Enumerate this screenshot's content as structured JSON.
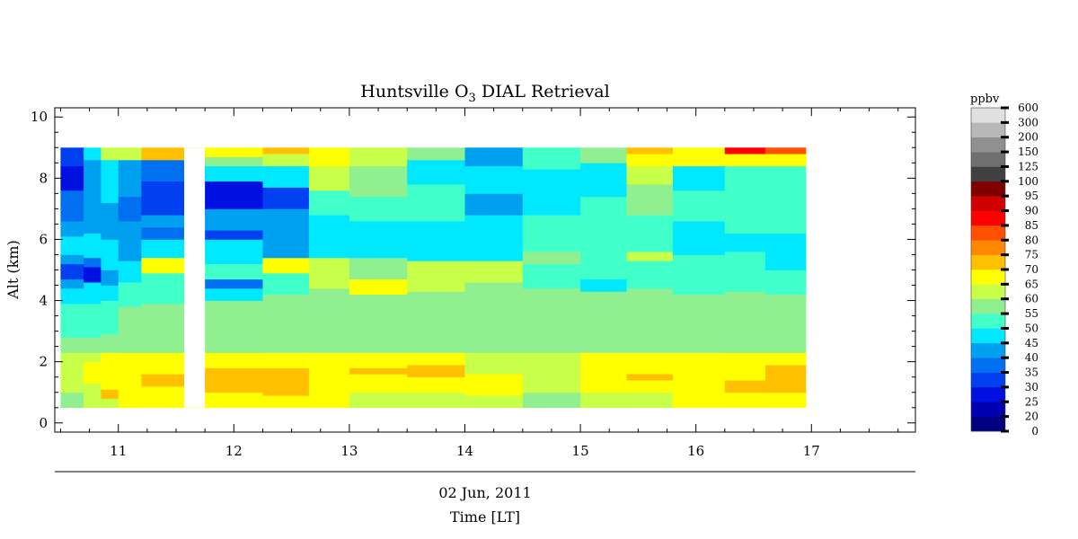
{
  "chart_data": {
    "type": "heatmap",
    "title_prefix": "Huntsville O",
    "title_subscript": "3",
    "title_suffix": " DIAL Retrieval",
    "ylabel": "Alt (km)",
    "date_label": "02 Jun, 2011",
    "xlabel": "Time [LT]",
    "x_unit": "local time (hours)",
    "xlim": [
      10.45,
      17.9
    ],
    "ylim": [
      -0.3,
      10.3
    ],
    "x_ticks": [
      11,
      12,
      13,
      14,
      15,
      16,
      17
    ],
    "y_ticks": [
      0,
      2,
      4,
      6,
      8,
      10
    ],
    "grid": false,
    "colorbar": {
      "title": "ppbv",
      "levels": [
        0,
        20,
        25,
        30,
        35,
        40,
        45,
        50,
        55,
        60,
        65,
        70,
        75,
        80,
        85,
        90,
        95,
        100,
        125,
        150,
        200,
        300,
        600
      ],
      "colors": [
        "#000080",
        "#0000b0",
        "#0010e0",
        "#0040f0",
        "#0070f0",
        "#00a0f0",
        "#00e8ff",
        "#40ffc8",
        "#90f090",
        "#c8ff48",
        "#ffff00",
        "#ffc000",
        "#ff8800",
        "#ff5000",
        "#ff0000",
        "#d00000",
        "#800000",
        "#404040",
        "#707070",
        "#909090",
        "#b8b8b8",
        "#e0e0e0"
      ]
    },
    "altitude_range_km": [
      0.5,
      9.0
    ],
    "gap_hours": [
      11.57,
      11.75
    ],
    "profiles": [
      {
        "time": 10.5,
        "bands": [
          [
            0.5,
            1.0,
            "#90f090"
          ],
          [
            1.0,
            2.3,
            "#c8ff48"
          ],
          [
            2.3,
            2.8,
            "#90f090"
          ],
          [
            2.8,
            3.9,
            "#40ffc8"
          ],
          [
            3.9,
            4.4,
            "#00e8ff"
          ],
          [
            4.4,
            4.7,
            "#00a0f0"
          ],
          [
            4.7,
            5.2,
            "#0040f0"
          ],
          [
            5.2,
            5.5,
            "#00a0f0"
          ],
          [
            5.5,
            6.1,
            "#00e8ff"
          ],
          [
            6.1,
            6.6,
            "#00a0f0"
          ],
          [
            6.6,
            7.6,
            "#0070f0"
          ],
          [
            7.6,
            8.4,
            "#0010e0"
          ],
          [
            8.4,
            9.0,
            "#0040f0"
          ]
        ]
      },
      {
        "time": 10.7,
        "bands": [
          [
            0.5,
            1.3,
            "#c8ff48"
          ],
          [
            1.3,
            2.0,
            "#ffff00"
          ],
          [
            2.0,
            2.3,
            "#c8ff48"
          ],
          [
            2.3,
            2.8,
            "#90f090"
          ],
          [
            2.8,
            3.9,
            "#40ffc8"
          ],
          [
            3.9,
            4.6,
            "#00e8ff"
          ],
          [
            4.6,
            5.1,
            "#0010e0"
          ],
          [
            5.1,
            5.4,
            "#0070f0"
          ],
          [
            5.4,
            6.2,
            "#00e8ff"
          ],
          [
            6.2,
            6.8,
            "#00a0f0"
          ],
          [
            6.8,
            8.6,
            "#00a0f0"
          ],
          [
            8.6,
            9.0,
            "#00e8ff"
          ]
        ]
      },
      {
        "time": 10.85,
        "bands": [
          [
            0.5,
            0.8,
            "#c8ff48"
          ],
          [
            0.8,
            1.1,
            "#ffc000"
          ],
          [
            1.1,
            2.3,
            "#ffff00"
          ],
          [
            2.3,
            2.9,
            "#90f090"
          ],
          [
            2.9,
            4.0,
            "#40ffc8"
          ],
          [
            4.0,
            4.5,
            "#00e8ff"
          ],
          [
            4.5,
            5.0,
            "#00a0f0"
          ],
          [
            5.0,
            6.0,
            "#00e8ff"
          ],
          [
            6.0,
            7.2,
            "#00a0f0"
          ],
          [
            7.2,
            8.6,
            "#00e8ff"
          ],
          [
            8.6,
            9.0,
            "#c8ff48"
          ]
        ]
      },
      {
        "time": 11.0,
        "bands": [
          [
            0.5,
            2.3,
            "#ffff00"
          ],
          [
            2.3,
            3.8,
            "#90f090"
          ],
          [
            3.8,
            4.6,
            "#40ffc8"
          ],
          [
            4.6,
            5.3,
            "#00e8ff"
          ],
          [
            5.3,
            6.6,
            "#00a0f0"
          ],
          [
            6.6,
            7.4,
            "#0070f0"
          ],
          [
            7.4,
            8.6,
            "#00a0f0"
          ],
          [
            8.6,
            9.0,
            "#c8ff48"
          ]
        ]
      },
      {
        "time": 11.2,
        "bands": [
          [
            0.5,
            1.2,
            "#ffff00"
          ],
          [
            1.2,
            1.6,
            "#ffc000"
          ],
          [
            1.6,
            2.3,
            "#ffff00"
          ],
          [
            2.3,
            3.9,
            "#90f090"
          ],
          [
            3.9,
            4.9,
            "#40ffc8"
          ],
          [
            4.9,
            5.4,
            "#ffff00"
          ],
          [
            5.4,
            6.0,
            "#00e8ff"
          ],
          [
            6.0,
            6.4,
            "#0070f0"
          ],
          [
            6.4,
            6.8,
            "#00a0f0"
          ],
          [
            6.8,
            7.9,
            "#0040f0"
          ],
          [
            7.9,
            8.6,
            "#0070f0"
          ],
          [
            8.6,
            9.0,
            "#ffc000"
          ]
        ]
      },
      {
        "time": 11.75,
        "bands": [
          [
            0.5,
            1.0,
            "#ffff00"
          ],
          [
            1.0,
            1.8,
            "#ffc000"
          ],
          [
            1.8,
            2.3,
            "#ffff00"
          ],
          [
            2.3,
            4.0,
            "#90f090"
          ],
          [
            4.0,
            4.4,
            "#00e8ff"
          ],
          [
            4.4,
            4.7,
            "#0070f0"
          ],
          [
            4.7,
            5.2,
            "#40ffc8"
          ],
          [
            5.2,
            6.0,
            "#00e8ff"
          ],
          [
            6.0,
            6.3,
            "#0040f0"
          ],
          [
            6.3,
            7.0,
            "#00a0f0"
          ],
          [
            7.0,
            7.9,
            "#0010e0"
          ],
          [
            7.9,
            8.4,
            "#00e8ff"
          ],
          [
            8.4,
            8.7,
            "#90f090"
          ],
          [
            8.7,
            9.0,
            "#ffff00"
          ]
        ]
      },
      {
        "time": 12.25,
        "bands": [
          [
            0.5,
            0.9,
            "#ffff00"
          ],
          [
            0.9,
            1.8,
            "#ffc000"
          ],
          [
            1.8,
            2.3,
            "#ffff00"
          ],
          [
            2.3,
            4.2,
            "#90f090"
          ],
          [
            4.2,
            4.9,
            "#40ffc8"
          ],
          [
            4.9,
            5.4,
            "#ffff00"
          ],
          [
            5.4,
            7.0,
            "#00a0f0"
          ],
          [
            7.0,
            7.7,
            "#0040f0"
          ],
          [
            7.7,
            8.4,
            "#00e8ff"
          ],
          [
            8.4,
            8.8,
            "#c8ff48"
          ],
          [
            8.8,
            9.0,
            "#ffc000"
          ]
        ]
      },
      {
        "time": 12.65,
        "bands": [
          [
            0.5,
            1.3,
            "#ffff00"
          ],
          [
            1.3,
            1.7,
            "#ffff00"
          ],
          [
            1.7,
            2.3,
            "#ffff00"
          ],
          [
            2.3,
            4.4,
            "#90f090"
          ],
          [
            4.4,
            5.4,
            "#c8ff48"
          ],
          [
            5.4,
            6.8,
            "#00e8ff"
          ],
          [
            6.8,
            7.6,
            "#40ffc8"
          ],
          [
            7.6,
            8.4,
            "#c8ff48"
          ],
          [
            8.4,
            9.0,
            "#ffff00"
          ]
        ]
      },
      {
        "time": 13.0,
        "bands": [
          [
            0.5,
            1.0,
            "#c8ff48"
          ],
          [
            1.0,
            1.6,
            "#ffff00"
          ],
          [
            1.6,
            1.8,
            "#ffc000"
          ],
          [
            1.8,
            2.3,
            "#ffff00"
          ],
          [
            2.3,
            4.2,
            "#90f090"
          ],
          [
            4.2,
            4.7,
            "#ffff00"
          ],
          [
            4.7,
            5.4,
            "#90f090"
          ],
          [
            5.4,
            6.6,
            "#00e8ff"
          ],
          [
            6.6,
            7.4,
            "#40ffc8"
          ],
          [
            7.4,
            8.4,
            "#90f090"
          ],
          [
            8.4,
            9.0,
            "#c8ff48"
          ]
        ]
      },
      {
        "time": 13.5,
        "bands": [
          [
            0.5,
            1.0,
            "#c8ff48"
          ],
          [
            1.0,
            1.5,
            "#ffff00"
          ],
          [
            1.5,
            1.9,
            "#ffc000"
          ],
          [
            1.9,
            2.3,
            "#ffff00"
          ],
          [
            2.3,
            4.3,
            "#90f090"
          ],
          [
            4.3,
            5.3,
            "#c8ff48"
          ],
          [
            5.3,
            6.6,
            "#00e8ff"
          ],
          [
            6.6,
            7.8,
            "#40ffc8"
          ],
          [
            7.8,
            8.6,
            "#00e8ff"
          ],
          [
            8.6,
            9.0,
            "#90f090"
          ]
        ]
      },
      {
        "time": 14.0,
        "bands": [
          [
            0.5,
            0.9,
            "#c8ff48"
          ],
          [
            0.9,
            1.6,
            "#ffff00"
          ],
          [
            1.6,
            2.3,
            "#c8ff48"
          ],
          [
            2.3,
            4.6,
            "#90f090"
          ],
          [
            4.6,
            5.3,
            "#c8ff48"
          ],
          [
            5.3,
            6.8,
            "#00e8ff"
          ],
          [
            6.8,
            7.5,
            "#00a0f0"
          ],
          [
            7.5,
            8.4,
            "#00e8ff"
          ],
          [
            8.4,
            9.0,
            "#00a0f0"
          ]
        ]
      },
      {
        "time": 14.5,
        "bands": [
          [
            0.5,
            1.0,
            "#90f090"
          ],
          [
            1.0,
            2.3,
            "#c8ff48"
          ],
          [
            2.3,
            4.4,
            "#90f090"
          ],
          [
            4.4,
            5.2,
            "#40ffc8"
          ],
          [
            5.2,
            5.6,
            "#90f090"
          ],
          [
            5.6,
            6.8,
            "#40ffc8"
          ],
          [
            6.8,
            8.3,
            "#00e8ff"
          ],
          [
            8.3,
            9.0,
            "#40ffc8"
          ]
        ]
      },
      {
        "time": 15.0,
        "bands": [
          [
            0.5,
            1.0,
            "#c8ff48"
          ],
          [
            1.0,
            2.3,
            "#ffff00"
          ],
          [
            2.3,
            4.3,
            "#90f090"
          ],
          [
            4.3,
            4.7,
            "#00e8ff"
          ],
          [
            4.7,
            5.5,
            "#40ffc8"
          ],
          [
            5.5,
            7.4,
            "#40ffc8"
          ],
          [
            7.4,
            8.5,
            "#00e8ff"
          ],
          [
            8.5,
            9.0,
            "#90f090"
          ]
        ]
      },
      {
        "time": 15.4,
        "bands": [
          [
            0.5,
            1.0,
            "#c8ff48"
          ],
          [
            1.0,
            1.4,
            "#ffff00"
          ],
          [
            1.4,
            1.6,
            "#ffc000"
          ],
          [
            1.6,
            2.3,
            "#ffff00"
          ],
          [
            2.3,
            4.4,
            "#90f090"
          ],
          [
            4.4,
            5.3,
            "#40ffc8"
          ],
          [
            5.3,
            5.6,
            "#c8ff48"
          ],
          [
            5.6,
            6.8,
            "#40ffc8"
          ],
          [
            6.8,
            7.8,
            "#90f090"
          ],
          [
            7.8,
            8.4,
            "#c8ff48"
          ],
          [
            8.4,
            8.8,
            "#ffff00"
          ],
          [
            8.8,
            9.0,
            "#ffc000"
          ]
        ]
      },
      {
        "time": 15.8,
        "bands": [
          [
            0.5,
            1.1,
            "#ffff00"
          ],
          [
            1.1,
            2.3,
            "#ffff00"
          ],
          [
            2.3,
            4.2,
            "#90f090"
          ],
          [
            4.2,
            5.5,
            "#40ffc8"
          ],
          [
            5.5,
            6.6,
            "#00e8ff"
          ],
          [
            6.6,
            7.6,
            "#40ffc8"
          ],
          [
            7.6,
            8.4,
            "#00e8ff"
          ],
          [
            8.4,
            9.0,
            "#ffff00"
          ]
        ]
      },
      {
        "time": 16.25,
        "bands": [
          [
            0.5,
            1.0,
            "#ffff00"
          ],
          [
            1.0,
            1.4,
            "#ffc000"
          ],
          [
            1.4,
            2.3,
            "#ffff00"
          ],
          [
            2.3,
            3.7,
            "#90f090"
          ],
          [
            3.7,
            4.3,
            "#90f090"
          ],
          [
            4.3,
            5.6,
            "#40ffc8"
          ],
          [
            5.6,
            6.2,
            "#00e8ff"
          ],
          [
            6.2,
            7.4,
            "#40ffc8"
          ],
          [
            7.4,
            8.4,
            "#40ffc8"
          ],
          [
            8.4,
            8.8,
            "#ffff00"
          ],
          [
            8.8,
            9.0,
            "#ff0000"
          ]
        ]
      },
      {
        "time": 16.6,
        "bands": [
          [
            0.5,
            1.0,
            "#ffff00"
          ],
          [
            1.0,
            1.9,
            "#ffc000"
          ],
          [
            1.9,
            2.3,
            "#ffff00"
          ],
          [
            2.3,
            3.5,
            "#90f090"
          ],
          [
            3.5,
            4.2,
            "#90f090"
          ],
          [
            4.2,
            5.0,
            "#40ffc8"
          ],
          [
            5.0,
            5.4,
            "#00e8ff"
          ],
          [
            5.4,
            6.2,
            "#00e8ff"
          ],
          [
            6.2,
            7.6,
            "#40ffc8"
          ],
          [
            7.6,
            8.4,
            "#40ffc8"
          ],
          [
            8.4,
            8.8,
            "#ffff00"
          ],
          [
            8.8,
            9.0,
            "#ff5000"
          ]
        ]
      },
      {
        "time": 16.95,
        "bands": []
      }
    ]
  }
}
